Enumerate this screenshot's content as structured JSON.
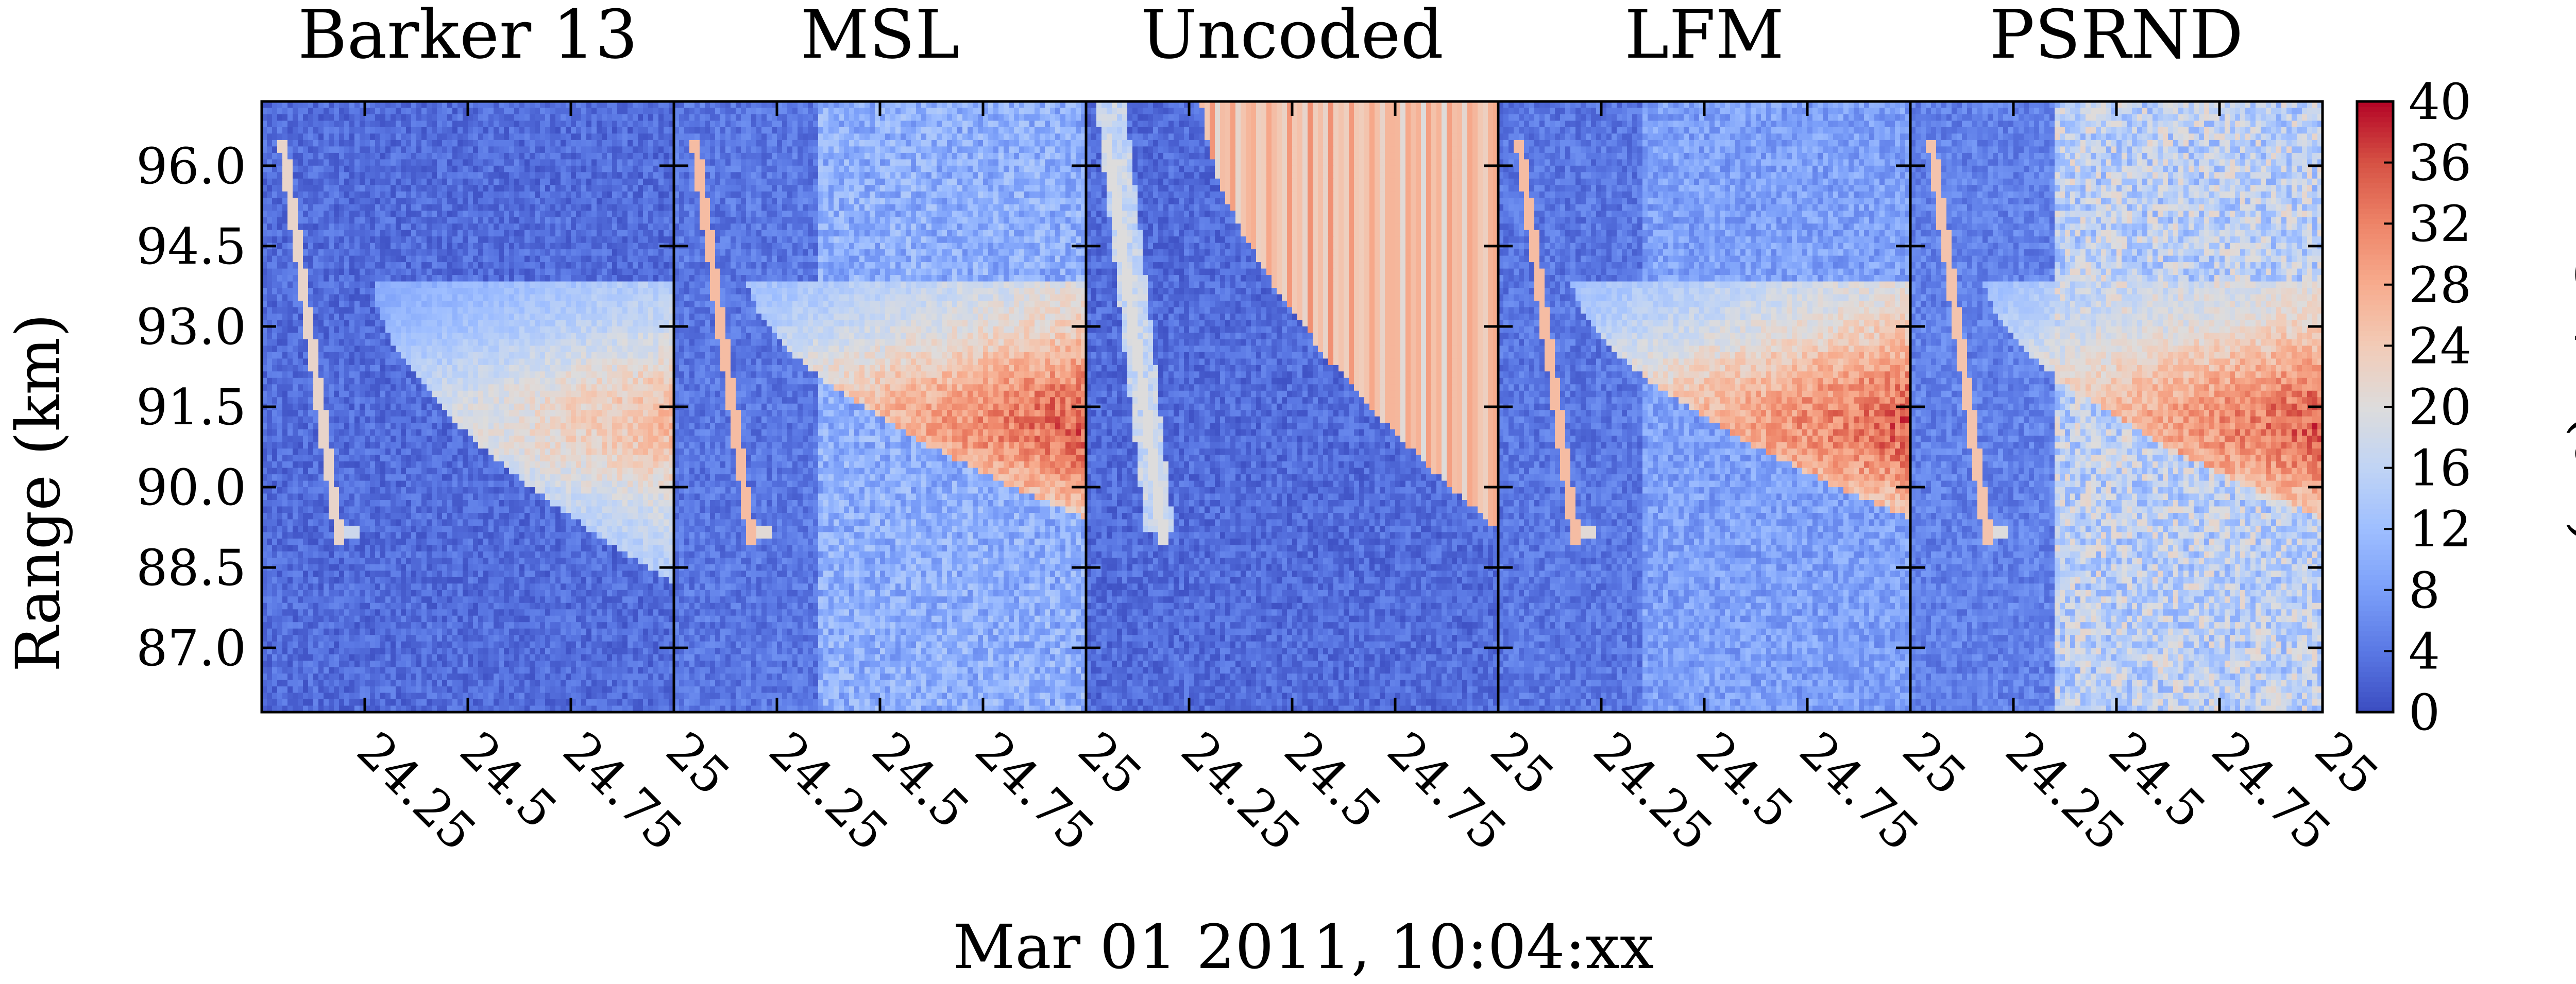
{
  "chart_data": {
    "type": "heatmap",
    "x_label": "Mar 01 2011, 10:04:xx",
    "y_label": "Range (km)",
    "colorbar": {
      "label": "SNR (dB)",
      "range": [
        0,
        40
      ],
      "ticks": [
        "0",
        "4",
        "8",
        "12",
        "16",
        "20",
        "24",
        "28",
        "32",
        "36",
        "40"
      ],
      "colormap": [
        "#3b4cc0",
        "#5a78e4",
        "#7b9ff9",
        "#9ebeff",
        "#c0d4f5",
        "#dddcdc",
        "#f2cbb7",
        "#f7ac8e",
        "#ee8468",
        "#d65244",
        "#b40426"
      ]
    },
    "x_range": [
      24.0,
      25.0
    ],
    "y_range": [
      85.8,
      97.2
    ],
    "x_ticks": [
      {
        "value": 24.25,
        "label": "24.25"
      },
      {
        "value": 24.5,
        "label": "24.5"
      },
      {
        "value": 24.75,
        "label": "24.75"
      },
      {
        "value": 25.0,
        "label": "25"
      }
    ],
    "y_ticks": [
      {
        "value": 96.0,
        "label": "96.0"
      },
      {
        "value": 94.5,
        "label": "94.5"
      },
      {
        "value": 93.0,
        "label": "93.0"
      },
      {
        "value": 91.5,
        "label": "91.5"
      },
      {
        "value": 90.0,
        "label": "90.0"
      },
      {
        "value": 88.5,
        "label": "88.5"
      },
      {
        "value": 87.0,
        "label": "87.0"
      }
    ],
    "panels": [
      {
        "title": "Barker 13",
        "background_snr": 3,
        "echo_peak_snr": 27,
        "echo_top_km": 93.8,
        "echo_bottom_km": 88.2,
        "echo_start_x": 24.27,
        "meteor_snr": 22,
        "clutter_snr": 0
      },
      {
        "title": "MSL",
        "background_snr": 4,
        "echo_peak_snr": 36,
        "echo_top_km": 93.8,
        "echo_bottom_km": 89.4,
        "echo_start_x": 24.18,
        "meteor_snr": 26,
        "clutter_snr": 11
      },
      {
        "title": "Uncoded",
        "background_snr": 3,
        "echo_peak_snr": 31,
        "echo_top_km": 97.2,
        "echo_bottom_km": 89.2,
        "echo_start_x": 24.28,
        "meteor_snr": 20,
        "clutter_snr": 0
      },
      {
        "title": "LFM",
        "background_snr": 4,
        "echo_peak_snr": 36,
        "echo_top_km": 93.8,
        "echo_bottom_km": 89.4,
        "echo_start_x": 24.18,
        "meteor_snr": 26,
        "clutter_snr": 9
      },
      {
        "title": "PSRND",
        "background_snr": 5,
        "echo_peak_snr": 36,
        "echo_top_km": 93.8,
        "echo_bottom_km": 89.4,
        "echo_start_x": 24.18,
        "meteor_snr": 25,
        "clutter_snr": 17
      }
    ]
  }
}
